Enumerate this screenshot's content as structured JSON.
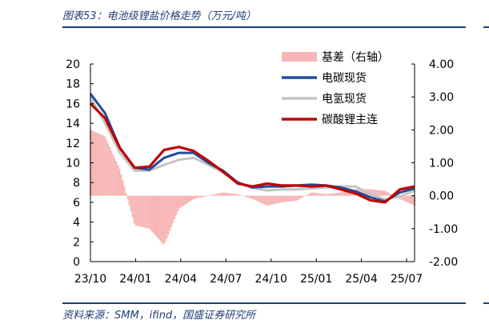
{
  "header": {
    "title": "图表53：电池级锂盐价格走势（万元/吨）",
    "source": "资料来源：SMM，ifind，国盛证券研究所"
  },
  "colors": {
    "frame": "#1f3f7a",
    "basis": "#f7b5b5",
    "battery_carbonate": "#1f4e9c",
    "battery_hydroxide": "#c4c4c4",
    "futures": "#c00000"
  },
  "chart_data": {
    "type": "line",
    "x_ticks": [
      "23/10",
      "24/01",
      "24/04",
      "24/07",
      "24/10",
      "25/01",
      "25/04",
      "25/07"
    ],
    "y_left": {
      "ylim": [
        0,
        20
      ],
      "ticks": [
        "0",
        "2",
        "4",
        "6",
        "8",
        "10",
        "12",
        "14",
        "16",
        "18",
        "20"
      ]
    },
    "y_right": {
      "ylim": [
        -2,
        4
      ],
      "ticks": [
        "-2.00",
        "-1.00",
        "0.00",
        "1.00",
        "2.00",
        "3.00",
        "4.00"
      ]
    },
    "legend": [
      "基差（右轴）",
      "电碳现货",
      "电氢现货",
      "碳酸锂主连"
    ],
    "legend_position": "top-right",
    "x": [
      "23/10",
      "23/11",
      "23/12",
      "24/01",
      "24/02",
      "24/03",
      "24/04",
      "24/05",
      "24/06",
      "24/07",
      "24/08",
      "24/09",
      "24/10",
      "24/11",
      "24/12",
      "25/01",
      "25/02",
      "25/03",
      "25/04",
      "25/05",
      "25/06",
      "25/07",
      "25/08"
    ],
    "series": [
      {
        "name": "电碳现货",
        "axis": "left",
        "values": [
          17.0,
          15.0,
          11.5,
          9.5,
          9.3,
          10.5,
          11.0,
          11.0,
          10.0,
          9.2,
          8.0,
          7.5,
          7.6,
          7.6,
          7.7,
          7.8,
          7.7,
          7.5,
          7.1,
          6.5,
          6.1,
          7.0,
          7.4
        ]
      },
      {
        "name": "电氢现货",
        "axis": "left",
        "values": [
          16.6,
          14.0,
          11.0,
          9.2,
          9.2,
          9.8,
          10.3,
          10.5,
          9.8,
          9.0,
          8.0,
          7.5,
          7.2,
          7.3,
          7.3,
          7.4,
          7.5,
          7.6,
          7.6,
          6.8,
          6.3,
          6.6,
          7.2
        ]
      },
      {
        "name": "碳酸锂主连",
        "axis": "left",
        "values": [
          16.0,
          14.5,
          11.5,
          9.5,
          9.6,
          11.3,
          11.6,
          11.2,
          10.2,
          9.1,
          7.9,
          7.6,
          7.9,
          7.7,
          7.7,
          7.6,
          7.7,
          7.3,
          6.9,
          6.2,
          6.0,
          7.3,
          7.6
        ]
      },
      {
        "name": "基差（右轴）",
        "axis": "right",
        "values": [
          2.0,
          1.8,
          0.8,
          -0.9,
          -1.0,
          -1.5,
          -0.4,
          -0.1,
          0.0,
          0.1,
          0.05,
          -0.1,
          -0.3,
          -0.2,
          -0.15,
          0.1,
          0.05,
          0.1,
          0.2,
          0.2,
          0.15,
          -0.1,
          -0.3
        ]
      }
    ]
  }
}
